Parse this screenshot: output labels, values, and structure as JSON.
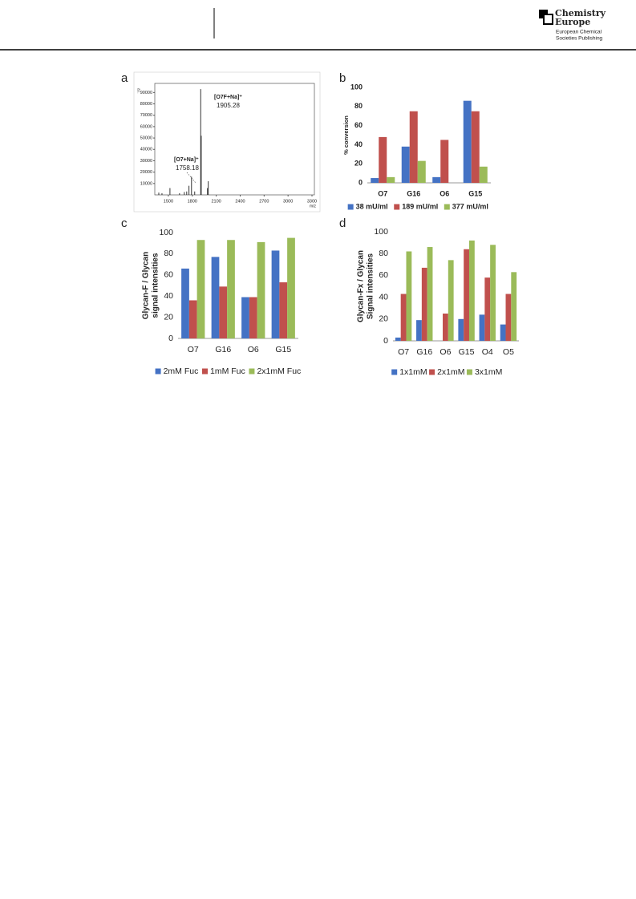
{
  "header": {
    "logo_line1": "Chemistry",
    "logo_line2": "Europe",
    "publisher_line1": "European Chemical",
    "publisher_line2": "Societies Publishing"
  },
  "panels": [
    "a",
    "b",
    "c",
    "d"
  ],
  "chart_data": [
    {
      "type": "spectrum",
      "ylabel": "a.i.",
      "xlabel": "m/z",
      "color": "#333333",
      "x": [
        1380,
        1420,
        1520,
        1640,
        1700,
        1730,
        1758.18,
        1790,
        1830,
        1905.28,
        1912,
        1990,
        2000
      ],
      "values": [
        2000,
        1500,
        6000,
        1500,
        2500,
        3000,
        8000,
        16000,
        3000,
        93000,
        52000,
        6000,
        12000
      ],
      "xlim": [
        1330,
        3330
      ],
      "ylim": [
        0,
        98000
      ],
      "xticks": [
        1500,
        1800,
        2100,
        2400,
        2700,
        3000,
        3300
      ],
      "yticks": [
        10000,
        20000,
        30000,
        40000,
        50000,
        60000,
        70000,
        80000,
        90000
      ],
      "annotations": [
        "[O7F+Na]⁺",
        "1905.28",
        "[O7+Na]⁺",
        "1758.18"
      ]
    },
    {
      "type": "bar",
      "ylabel": "% conversion",
      "categories": [
        "O7",
        "G16",
        "O6",
        "G15"
      ],
      "series": [
        {
          "name": "38 mU/ml",
          "color": "#4472c4",
          "values": [
            5,
            38,
            6,
            86
          ]
        },
        {
          "name": "189 mU/ml",
          "color": "#c0504d",
          "values": [
            48,
            75,
            45,
            75
          ]
        },
        {
          "name": "377 mU/ml",
          "color": "#9bbb59",
          "values": [
            6,
            23,
            0,
            17
          ]
        }
      ],
      "ylim": [
        0,
        100
      ],
      "yticks": [
        0,
        20,
        40,
        60,
        80,
        100
      ],
      "grid": false,
      "legend": "bottom"
    },
    {
      "type": "bar",
      "ylabel": [
        "Glycan-F / Glycan",
        "signal intensities"
      ],
      "categories": [
        "O7",
        "G16",
        "O6",
        "G15"
      ],
      "series": [
        {
          "name": "2mM Fuc",
          "color": "#4472c4",
          "values": [
            66,
            77,
            39,
            83
          ]
        },
        {
          "name": "1mM Fuc",
          "color": "#c0504d",
          "values": [
            36,
            49,
            39,
            53
          ]
        },
        {
          "name": "2x1mM Fuc",
          "color": "#9bbb59",
          "values": [
            93,
            93,
            91,
            95
          ]
        }
      ],
      "ylim": [
        0,
        100
      ],
      "yticks": [
        0,
        20,
        40,
        60,
        80,
        100
      ],
      "grid": false,
      "legend": "bottom"
    },
    {
      "type": "bar",
      "ylabel": [
        "Glycan-Fx / Glycan",
        "Signal intensities"
      ],
      "categories": [
        "O7",
        "G16",
        "O6",
        "G15",
        "O4",
        "O5"
      ],
      "series": [
        {
          "name": "1x1mM",
          "color": "#4472c4",
          "values": [
            3,
            19,
            0,
            20,
            24,
            15
          ]
        },
        {
          "name": "2x1mM",
          "color": "#c0504d",
          "values": [
            43,
            67,
            25,
            84,
            58,
            43
          ]
        },
        {
          "name": "3x1mM",
          "color": "#9bbb59",
          "values": [
            82,
            86,
            74,
            92,
            88,
            63
          ]
        }
      ],
      "ylim": [
        0,
        100
      ],
      "yticks": [
        0,
        20,
        40,
        60,
        80,
        100
      ],
      "grid": false,
      "legend": "bottom"
    }
  ]
}
